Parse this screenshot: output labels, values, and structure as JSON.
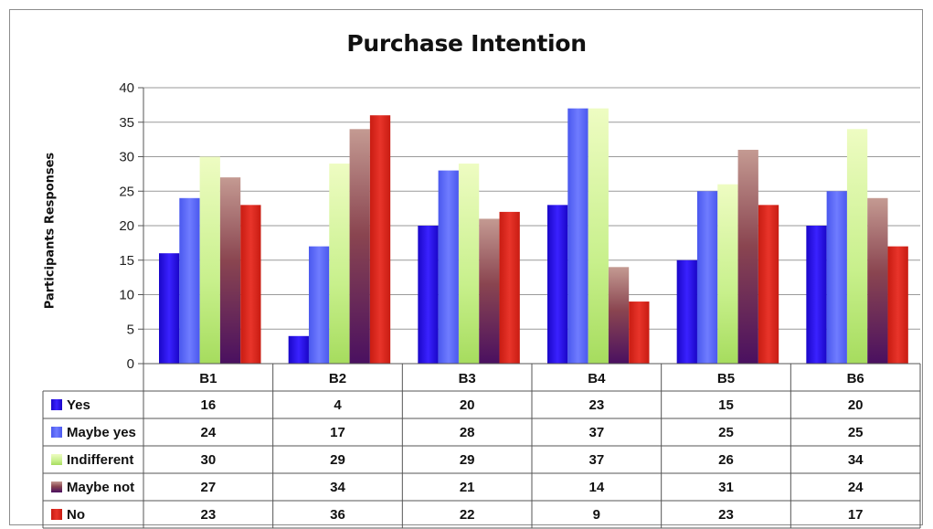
{
  "chart_data": {
    "type": "bar",
    "title": "Purchase Intention",
    "xlabel": "",
    "ylabel": "Participants Responses",
    "ylim": [
      0,
      40
    ],
    "yticks": [
      0,
      5,
      10,
      15,
      20,
      25,
      30,
      35,
      40
    ],
    "grid": true,
    "legend": "data-table",
    "categories": [
      "B1",
      "B2",
      "B3",
      "B4",
      "B5",
      "B6"
    ],
    "series": [
      {
        "name": "Yes",
        "values": [
          16,
          4,
          20,
          23,
          15,
          20
        ],
        "color": "#2a10f5"
      },
      {
        "name": "Maybe yes",
        "values": [
          24,
          17,
          28,
          37,
          25,
          25
        ],
        "color": "#5a68f8"
      },
      {
        "name": "Indifferent",
        "values": [
          30,
          29,
          29,
          37,
          26,
          34
        ],
        "color": "#cdf59a"
      },
      {
        "name": "Maybe not",
        "values": [
          27,
          34,
          21,
          14,
          31,
          24
        ],
        "color": "#7a3a55"
      },
      {
        "name": "No",
        "values": [
          23,
          36,
          22,
          9,
          23,
          17
        ],
        "color": "#d8261c"
      }
    ]
  }
}
